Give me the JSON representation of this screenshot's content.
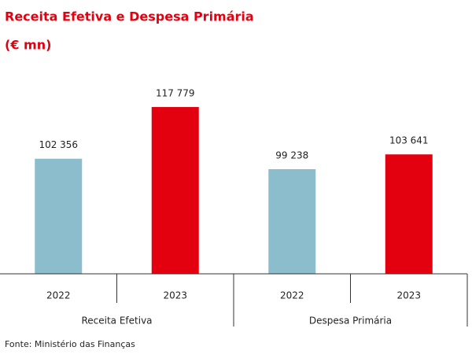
{
  "chart_data": {
    "type": "bar",
    "title": "Receita Efetiva e Despesa  Primária",
    "subtitle": "(€ mn)",
    "categories": [
      "2022",
      "2023",
      "2022",
      "2023"
    ],
    "groups": [
      "Receita Efetiva",
      "Despesa Primária"
    ],
    "values": [
      102356,
      117779,
      99238,
      103641
    ],
    "value_labels": [
      "102 356",
      "117 779",
      "99 238",
      "103 641"
    ],
    "colors": [
      "#8bbdcc",
      "#e3000f",
      "#8bbdcc",
      "#e3000f"
    ],
    "ylim": [
      68000,
      130000
    ],
    "source": "Fonte: Ministério das Finanças"
  }
}
